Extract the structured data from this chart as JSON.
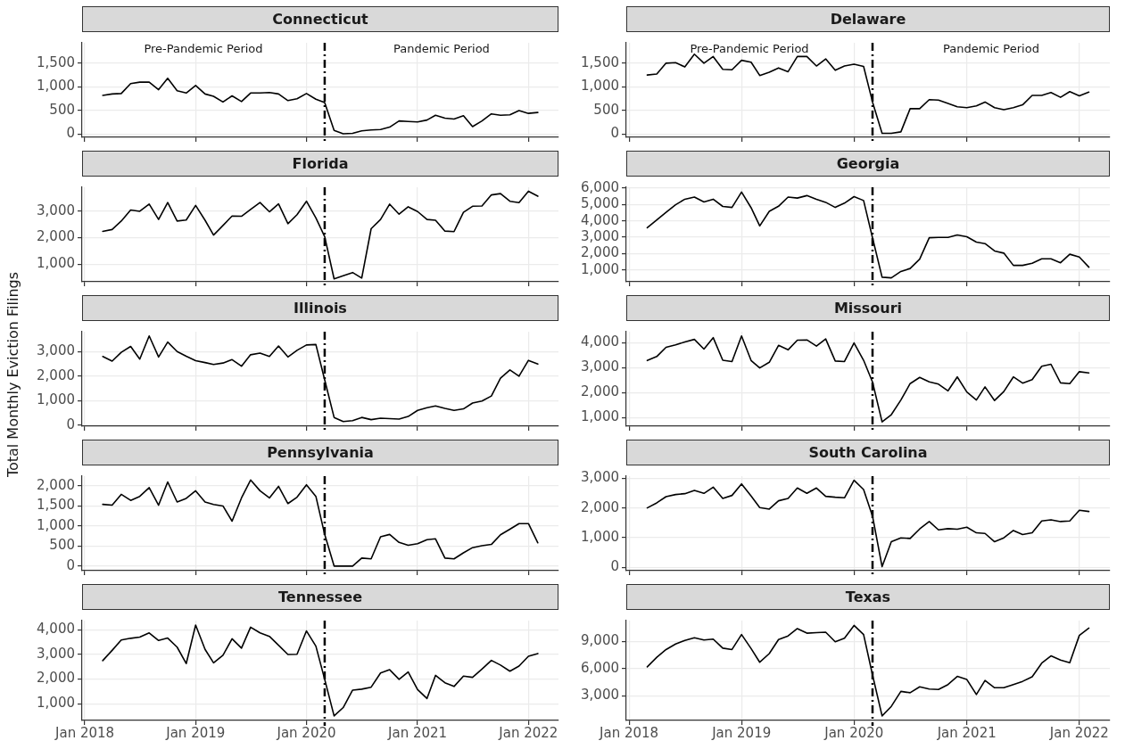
{
  "chart_data": [
    {
      "type": "line",
      "title": "Connecticut",
      "x": [
        "2018-03",
        "2018-04",
        "2018-05",
        "2018-06",
        "2018-07",
        "2018-08",
        "2018-09",
        "2018-10",
        "2018-11",
        "2018-12",
        "2019-01",
        "2019-02",
        "2019-03",
        "2019-04",
        "2019-05",
        "2019-06",
        "2019-07",
        "2019-08",
        "2019-09",
        "2019-10",
        "2019-11",
        "2019-12",
        "2020-01",
        "2020-02",
        "2020-03",
        "2020-04",
        "2020-05",
        "2020-06",
        "2020-07",
        "2020-08",
        "2020-09",
        "2020-10",
        "2020-11",
        "2020-12",
        "2021-01",
        "2021-02",
        "2021-03",
        "2021-04",
        "2021-05",
        "2021-06",
        "2021-07",
        "2021-08",
        "2021-09",
        "2021-10",
        "2021-11",
        "2021-12",
        "2022-01",
        "2022-02"
      ],
      "series": [
        {
          "color": "#000000",
          "values": [
            820,
            850,
            860,
            1070,
            1100,
            1100,
            940,
            1180,
            920,
            870,
            1030,
            850,
            800,
            680,
            810,
            690,
            870,
            870,
            880,
            850,
            710,
            750,
            860,
            740,
            670,
            80,
            10,
            20,
            70,
            90,
            100,
            150,
            280,
            270,
            260,
            300,
            400,
            340,
            320,
            390,
            160,
            280,
            430,
            400,
            410,
            500,
            440,
            460
          ]
        }
      ],
      "xlim": [
        "2017-12-23",
        "2022-04-10"
      ],
      "xticks": [
        {
          "value": "2018-01",
          "label": null
        },
        {
          "value": "2019-01",
          "label": null
        },
        {
          "value": "2020-01",
          "label": null
        },
        {
          "value": "2021-01",
          "label": null
        },
        {
          "value": "2022-01",
          "label": null
        }
      ],
      "ylim": [
        -65,
        1930
      ],
      "yticks": [
        {
          "value": 0,
          "label": "0"
        },
        {
          "value": 500,
          "label": "500"
        },
        {
          "value": 1000,
          "label": "1,000"
        },
        {
          "value": 1500,
          "label": "1,500"
        }
      ],
      "grid": true,
      "tick_labels": "y",
      "ref_lines": [
        {
          "axis": "x",
          "value": "2020-03",
          "line_style": "dashed",
          "color": "#000000"
        }
      ],
      "annotations": [
        "Pre-Pandemic Period",
        "Pandemic Period"
      ]
    },
    {
      "type": "line",
      "title": "Delaware",
      "x": [
        "2018-03",
        "2018-04",
        "2018-05",
        "2018-06",
        "2018-07",
        "2018-08",
        "2018-09",
        "2018-10",
        "2018-11",
        "2018-12",
        "2019-01",
        "2019-02",
        "2019-03",
        "2019-04",
        "2019-05",
        "2019-06",
        "2019-07",
        "2019-08",
        "2019-09",
        "2019-10",
        "2019-11",
        "2019-12",
        "2020-01",
        "2020-02",
        "2020-03",
        "2020-04",
        "2020-05",
        "2020-06",
        "2020-07",
        "2020-08",
        "2020-09",
        "2020-10",
        "2020-11",
        "2020-12",
        "2021-01",
        "2021-02",
        "2021-03",
        "2021-04",
        "2021-05",
        "2021-06",
        "2021-07",
        "2021-08",
        "2021-09",
        "2021-10",
        "2021-11",
        "2021-12",
        "2022-01",
        "2022-02"
      ],
      "series": [
        {
          "color": "#000000",
          "values": [
            1250,
            1270,
            1500,
            1510,
            1420,
            1690,
            1500,
            1640,
            1370,
            1360,
            1560,
            1520,
            1240,
            1310,
            1400,
            1320,
            1640,
            1640,
            1440,
            1590,
            1350,
            1440,
            1480,
            1430,
            680,
            20,
            20,
            50,
            540,
            540,
            730,
            720,
            650,
            580,
            560,
            600,
            680,
            560,
            520,
            560,
            620,
            820,
            820,
            880,
            780,
            900,
            810,
            890
          ]
        }
      ],
      "xlim": [
        "2017-12-23",
        "2022-04-10"
      ],
      "xticks": [
        {
          "value": "2018-01",
          "label": null
        },
        {
          "value": "2019-01",
          "label": null
        },
        {
          "value": "2020-01",
          "label": null
        },
        {
          "value": "2021-01",
          "label": null
        },
        {
          "value": "2022-01",
          "label": null
        }
      ],
      "ylim": [
        -65,
        1930
      ],
      "yticks": [
        {
          "value": 0,
          "label": "0"
        },
        {
          "value": 500,
          "label": "500"
        },
        {
          "value": 1000,
          "label": "1,000"
        },
        {
          "value": 1500,
          "label": "1,500"
        }
      ],
      "grid": true,
      "tick_labels": "y",
      "ref_lines": [
        {
          "axis": "x",
          "value": "2020-03",
          "line_style": "dashed",
          "color": "#000000"
        }
      ],
      "annotations": [
        "Pre-Pandemic Period",
        "Pandemic Period"
      ]
    },
    {
      "type": "line",
      "title": "Florida",
      "x": [
        "2018-03",
        "2018-04",
        "2018-05",
        "2018-06",
        "2018-07",
        "2018-08",
        "2018-09",
        "2018-10",
        "2018-11",
        "2018-12",
        "2019-01",
        "2019-02",
        "2019-03",
        "2019-04",
        "2019-05",
        "2019-06",
        "2019-07",
        "2019-08",
        "2019-09",
        "2019-10",
        "2019-11",
        "2019-12",
        "2020-01",
        "2020-02",
        "2020-03",
        "2020-04",
        "2020-05",
        "2020-06",
        "2020-07",
        "2020-08",
        "2020-09",
        "2020-10",
        "2020-11",
        "2020-12",
        "2021-01",
        "2021-02",
        "2021-03",
        "2021-04",
        "2021-05",
        "2021-06",
        "2021-07",
        "2021-08",
        "2021-09",
        "2021-10",
        "2021-11",
        "2021-12",
        "2022-01",
        "2022-02"
      ],
      "series": [
        {
          "color": "#000000",
          "values": [
            2240,
            2310,
            2630,
            3050,
            3000,
            3270,
            2690,
            3330,
            2630,
            2670,
            3220,
            2660,
            2100,
            2460,
            2820,
            2810,
            3070,
            3330,
            2980,
            3280,
            2530,
            2870,
            3380,
            2750,
            2040,
            440,
            560,
            680,
            470,
            2340,
            2690,
            3270,
            2890,
            3170,
            2990,
            2690,
            2660,
            2250,
            2230,
            2960,
            3190,
            3200,
            3620,
            3670,
            3380,
            3330,
            3760,
            3570
          ]
        }
      ],
      "xlim": [
        "2017-12-23",
        "2022-04-10"
      ],
      "xticks": [
        {
          "value": "2018-01",
          "label": null
        },
        {
          "value": "2019-01",
          "label": null
        },
        {
          "value": "2020-01",
          "label": null
        },
        {
          "value": "2021-01",
          "label": null
        },
        {
          "value": "2022-01",
          "label": null
        }
      ],
      "ylim": [
        330,
        3910
      ],
      "yticks": [
        {
          "value": 1000,
          "label": "1,000"
        },
        {
          "value": 2000,
          "label": "2,000"
        },
        {
          "value": 3000,
          "label": "3,000"
        }
      ],
      "grid": true,
      "tick_labels": "y",
      "ref_lines": [
        {
          "axis": "x",
          "value": "2020-03",
          "line_style": "dashed",
          "color": "#000000"
        }
      ]
    },
    {
      "type": "line",
      "title": "Georgia",
      "x": [
        "2018-03",
        "2018-04",
        "2018-05",
        "2018-06",
        "2018-07",
        "2018-08",
        "2018-09",
        "2018-10",
        "2018-11",
        "2018-12",
        "2019-01",
        "2019-02",
        "2019-03",
        "2019-04",
        "2019-05",
        "2019-06",
        "2019-07",
        "2019-08",
        "2019-09",
        "2019-10",
        "2019-11",
        "2019-12",
        "2020-01",
        "2020-02",
        "2020-03",
        "2020-04",
        "2020-05",
        "2020-06",
        "2020-07",
        "2020-08",
        "2020-09",
        "2020-10",
        "2020-11",
        "2020-12",
        "2021-01",
        "2021-02",
        "2021-03",
        "2021-04",
        "2021-05",
        "2021-06",
        "2021-07",
        "2021-08",
        "2021-09",
        "2021-10",
        "2021-11",
        "2021-12",
        "2022-01",
        "2022-02"
      ],
      "series": [
        {
          "color": "#000000",
          "values": [
            3580,
            4060,
            4520,
            4980,
            5320,
            5450,
            5150,
            5320,
            4880,
            4820,
            5760,
            4800,
            3690,
            4580,
            4890,
            5450,
            5390,
            5540,
            5320,
            5130,
            4820,
            5080,
            5480,
            5240,
            2960,
            560,
            520,
            910,
            1090,
            1660,
            2970,
            2990,
            2990,
            3140,
            3030,
            2700,
            2610,
            2160,
            2030,
            1280,
            1280,
            1410,
            1680,
            1680,
            1440,
            1960,
            1790,
            1170
          ]
        }
      ],
      "xlim": [
        "2017-12-23",
        "2022-04-10"
      ],
      "xticks": [
        {
          "value": "2018-01",
          "label": null
        },
        {
          "value": "2019-01",
          "label": null
        },
        {
          "value": "2020-01",
          "label": null
        },
        {
          "value": "2021-01",
          "label": null
        },
        {
          "value": "2022-01",
          "label": null
        }
      ],
      "ylim": [
        280,
        6050
      ],
      "yticks": [
        {
          "value": 1000,
          "label": "1,000"
        },
        {
          "value": 2000,
          "label": "2,000"
        },
        {
          "value": 3000,
          "label": "3,000"
        },
        {
          "value": 4000,
          "label": "4,000"
        },
        {
          "value": 5000,
          "label": "5,000"
        },
        {
          "value": 6000,
          "label": "6,000"
        }
      ],
      "grid": true,
      "tick_labels": "y",
      "ref_lines": [
        {
          "axis": "x",
          "value": "2020-03",
          "line_style": "dashed",
          "color": "#000000"
        }
      ]
    },
    {
      "type": "line",
      "title": "Illinois",
      "ylabel": "Total Monthly Eviction Filings",
      "x": [
        "2018-03",
        "2018-04",
        "2018-05",
        "2018-06",
        "2018-07",
        "2018-08",
        "2018-09",
        "2018-10",
        "2018-11",
        "2018-12",
        "2019-01",
        "2019-02",
        "2019-03",
        "2019-04",
        "2019-05",
        "2019-06",
        "2019-07",
        "2019-08",
        "2019-09",
        "2019-10",
        "2019-11",
        "2019-12",
        "2020-01",
        "2020-02",
        "2020-03",
        "2020-04",
        "2020-05",
        "2020-06",
        "2020-07",
        "2020-08",
        "2020-09",
        "2020-10",
        "2020-11",
        "2020-12",
        "2021-01",
        "2021-02",
        "2021-03",
        "2021-04",
        "2021-05",
        "2021-06",
        "2021-07",
        "2021-08",
        "2021-09",
        "2021-10",
        "2021-11",
        "2021-12",
        "2022-01",
        "2022-02"
      ],
      "series": [
        {
          "color": "#000000",
          "values": [
            2810,
            2620,
            2980,
            3220,
            2700,
            3650,
            2790,
            3400,
            3010,
            2820,
            2640,
            2560,
            2480,
            2540,
            2680,
            2410,
            2880,
            2950,
            2810,
            3240,
            2790,
            3060,
            3280,
            3300,
            1850,
            310,
            140,
            180,
            310,
            220,
            280,
            260,
            240,
            350,
            600,
            710,
            780,
            680,
            600,
            660,
            900,
            980,
            1190,
            1920,
            2260,
            2000,
            2650,
            2500
          ]
        }
      ],
      "xlim": [
        "2017-12-23",
        "2022-04-10"
      ],
      "xticks": [
        {
          "value": "2018-01",
          "label": null
        },
        {
          "value": "2019-01",
          "label": null
        },
        {
          "value": "2020-01",
          "label": null
        },
        {
          "value": "2021-01",
          "label": null
        },
        {
          "value": "2022-01",
          "label": null
        }
      ],
      "ylim": [
        -50,
        3825
      ],
      "yticks": [
        {
          "value": 0,
          "label": "0"
        },
        {
          "value": 1000,
          "label": "1,000"
        },
        {
          "value": 2000,
          "label": "2,000"
        },
        {
          "value": 3000,
          "label": "3,000"
        }
      ],
      "grid": true,
      "tick_labels": "y",
      "ref_lines": [
        {
          "axis": "x",
          "value": "2020-03",
          "line_style": "dashed",
          "color": "#000000"
        }
      ]
    },
    {
      "type": "line",
      "title": "Missouri",
      "x": [
        "2018-03",
        "2018-04",
        "2018-05",
        "2018-06",
        "2018-07",
        "2018-08",
        "2018-09",
        "2018-10",
        "2018-11",
        "2018-12",
        "2019-01",
        "2019-02",
        "2019-03",
        "2019-04",
        "2019-05",
        "2019-06",
        "2019-07",
        "2019-08",
        "2019-09",
        "2019-10",
        "2019-11",
        "2019-12",
        "2020-01",
        "2020-02",
        "2020-03",
        "2020-04",
        "2020-05",
        "2020-06",
        "2020-07",
        "2020-08",
        "2020-09",
        "2020-10",
        "2020-11",
        "2020-12",
        "2021-01",
        "2021-02",
        "2021-03",
        "2021-04",
        "2021-05",
        "2021-06",
        "2021-07",
        "2021-08",
        "2021-09",
        "2021-10",
        "2021-11",
        "2021-12",
        "2022-01",
        "2022-02"
      ],
      "series": [
        {
          "color": "#000000",
          "values": [
            3290,
            3450,
            3820,
            3920,
            4040,
            4140,
            3750,
            4210,
            3300,
            3250,
            4280,
            3290,
            2990,
            3220,
            3900,
            3720,
            4110,
            4120,
            3870,
            4160,
            3270,
            3250,
            4000,
            3300,
            2420,
            820,
            1110,
            1700,
            2360,
            2610,
            2430,
            2340,
            2070,
            2630,
            2020,
            1700,
            2230,
            1680,
            2040,
            2630,
            2380,
            2520,
            3060,
            3140,
            2390,
            2360,
            2840,
            2790
          ]
        }
      ],
      "xlim": [
        "2017-12-23",
        "2022-04-10"
      ],
      "xticks": [
        {
          "value": "2018-01",
          "label": null
        },
        {
          "value": "2019-01",
          "label": null
        },
        {
          "value": "2020-01",
          "label": null
        },
        {
          "value": "2021-01",
          "label": null
        },
        {
          "value": "2022-01",
          "label": null
        }
      ],
      "ylim": [
        645,
        4450
      ],
      "yticks": [
        {
          "value": 1000,
          "label": "1,000"
        },
        {
          "value": 2000,
          "label": "2,000"
        },
        {
          "value": 3000,
          "label": "3,000"
        },
        {
          "value": 4000,
          "label": "4,000"
        }
      ],
      "grid": true,
      "tick_labels": "y",
      "ref_lines": [
        {
          "axis": "x",
          "value": "2020-03",
          "line_style": "dashed",
          "color": "#000000"
        }
      ]
    },
    {
      "type": "line",
      "title": "Pennsylvania",
      "x": [
        "2018-03",
        "2018-04",
        "2018-05",
        "2018-06",
        "2018-07",
        "2018-08",
        "2018-09",
        "2018-10",
        "2018-11",
        "2018-12",
        "2019-01",
        "2019-02",
        "2019-03",
        "2019-04",
        "2019-05",
        "2019-06",
        "2019-07",
        "2019-08",
        "2019-09",
        "2019-10",
        "2019-11",
        "2019-12",
        "2020-01",
        "2020-02",
        "2020-03",
        "2020-04",
        "2020-05",
        "2020-06",
        "2020-07",
        "2020-08",
        "2020-09",
        "2020-10",
        "2020-11",
        "2020-12",
        "2021-01",
        "2021-02",
        "2021-03",
        "2021-04",
        "2021-05",
        "2021-06",
        "2021-07",
        "2021-08",
        "2021-09",
        "2021-10",
        "2021-11",
        "2021-12",
        "2022-01",
        "2022-02"
      ],
      "series": [
        {
          "color": "#000000",
          "values": [
            1540,
            1520,
            1790,
            1640,
            1740,
            1960,
            1520,
            2100,
            1600,
            1690,
            1880,
            1600,
            1540,
            1500,
            1120,
            1700,
            2150,
            1880,
            1700,
            1990,
            1560,
            1720,
            2030,
            1740,
            790,
            0,
            0,
            0,
            200,
            180,
            730,
            790,
            590,
            520,
            560,
            660,
            680,
            200,
            180,
            330,
            460,
            510,
            540,
            780,
            920,
            1060,
            1060,
            580
          ]
        }
      ],
      "xlim": [
        "2017-12-23",
        "2022-04-10"
      ],
      "xticks": [
        {
          "value": "2018-01",
          "label": null
        },
        {
          "value": "2019-01",
          "label": null
        },
        {
          "value": "2020-01",
          "label": null
        },
        {
          "value": "2021-01",
          "label": null
        },
        {
          "value": "2022-01",
          "label": null
        }
      ],
      "ylim": [
        -115,
        2245
      ],
      "yticks": [
        {
          "value": 0,
          "label": "0"
        },
        {
          "value": 500,
          "label": "500"
        },
        {
          "value": 1000,
          "label": "1,000"
        },
        {
          "value": 1500,
          "label": "1,500"
        },
        {
          "value": 2000,
          "label": "2,000"
        }
      ],
      "grid": true,
      "tick_labels": "y",
      "ref_lines": [
        {
          "axis": "x",
          "value": "2020-03",
          "line_style": "dashed",
          "color": "#000000"
        }
      ]
    },
    {
      "type": "line",
      "title": "South Carolina",
      "x": [
        "2018-03",
        "2018-04",
        "2018-05",
        "2018-06",
        "2018-07",
        "2018-08",
        "2018-09",
        "2018-10",
        "2018-11",
        "2018-12",
        "2019-01",
        "2019-02",
        "2019-03",
        "2019-04",
        "2019-05",
        "2019-06",
        "2019-07",
        "2019-08",
        "2019-09",
        "2019-10",
        "2019-11",
        "2019-12",
        "2020-01",
        "2020-02",
        "2020-03",
        "2020-04",
        "2020-05",
        "2020-06",
        "2020-07",
        "2020-08",
        "2020-09",
        "2020-10",
        "2020-11",
        "2020-12",
        "2021-01",
        "2021-02",
        "2021-03",
        "2021-04",
        "2021-05",
        "2021-06",
        "2021-07",
        "2021-08",
        "2021-09",
        "2021-10",
        "2021-11",
        "2021-12",
        "2022-01",
        "2022-02"
      ],
      "series": [
        {
          "color": "#000000",
          "values": [
            2000,
            2170,
            2380,
            2450,
            2480,
            2590,
            2490,
            2700,
            2320,
            2420,
            2810,
            2400,
            2010,
            1960,
            2240,
            2320,
            2670,
            2490,
            2670,
            2390,
            2360,
            2340,
            2930,
            2620,
            1720,
            20,
            860,
            990,
            970,
            1290,
            1540,
            1260,
            1300,
            1280,
            1350,
            1160,
            1140,
            860,
            990,
            1240,
            1100,
            1160,
            1560,
            1600,
            1540,
            1560,
            1920,
            1880
          ]
        }
      ],
      "xlim": [
        "2017-12-23",
        "2022-04-10"
      ],
      "xticks": [
        {
          "value": "2018-01",
          "label": null
        },
        {
          "value": "2019-01",
          "label": null
        },
        {
          "value": "2020-01",
          "label": null
        },
        {
          "value": "2021-01",
          "label": null
        },
        {
          "value": "2022-01",
          "label": null
        }
      ],
      "ylim": [
        -115,
        3070
      ],
      "yticks": [
        {
          "value": 0,
          "label": "0"
        },
        {
          "value": 1000,
          "label": "1,000"
        },
        {
          "value": 2000,
          "label": "2,000"
        },
        {
          "value": 3000,
          "label": "3,000"
        }
      ],
      "grid": true,
      "tick_labels": "y",
      "ref_lines": [
        {
          "axis": "x",
          "value": "2020-03",
          "line_style": "dashed",
          "color": "#000000"
        }
      ]
    },
    {
      "type": "line",
      "title": "Tennessee",
      "x": [
        "2018-03",
        "2018-04",
        "2018-05",
        "2018-06",
        "2018-07",
        "2018-08",
        "2018-09",
        "2018-10",
        "2018-11",
        "2018-12",
        "2019-01",
        "2019-02",
        "2019-03",
        "2019-04",
        "2019-05",
        "2019-06",
        "2019-07",
        "2019-08",
        "2019-09",
        "2019-10",
        "2019-11",
        "2019-12",
        "2020-01",
        "2020-02",
        "2020-03",
        "2020-04",
        "2020-05",
        "2020-06",
        "2020-07",
        "2020-08",
        "2020-09",
        "2020-10",
        "2020-11",
        "2020-12",
        "2021-01",
        "2021-02",
        "2021-03",
        "2021-04",
        "2021-05",
        "2021-06",
        "2021-07",
        "2021-08",
        "2021-09",
        "2021-10",
        "2021-11",
        "2021-12",
        "2022-01",
        "2022-02"
      ],
      "series": [
        {
          "color": "#000000",
          "values": [
            2750,
            3170,
            3590,
            3660,
            3710,
            3880,
            3570,
            3670,
            3300,
            2630,
            4200,
            3210,
            2660,
            2970,
            3640,
            3260,
            4110,
            3880,
            3740,
            3380,
            3000,
            3010,
            3960,
            3340,
            1990,
            500,
            840,
            1550,
            1590,
            1670,
            2250,
            2380,
            1990,
            2290,
            1570,
            1210,
            2150,
            1850,
            1700,
            2120,
            2070,
            2410,
            2760,
            2570,
            2320,
            2530,
            2930,
            3040
          ]
        }
      ],
      "xlim": [
        "2017-12-23",
        "2022-04-10"
      ],
      "xticks": [
        {
          "value": "2018-01",
          "label": "Jan 2018"
        },
        {
          "value": "2019-01",
          "label": "Jan 2019"
        },
        {
          "value": "2020-01",
          "label": "Jan 2020"
        },
        {
          "value": "2021-01",
          "label": "Jan 2021"
        },
        {
          "value": "2022-01",
          "label": "Jan 2022"
        }
      ],
      "ylim": [
        315,
        4380
      ],
      "yticks": [
        {
          "value": 1000,
          "label": "1,000"
        },
        {
          "value": 2000,
          "label": "2,000"
        },
        {
          "value": 3000,
          "label": "3,000"
        },
        {
          "value": 4000,
          "label": "4,000"
        }
      ],
      "grid": true,
      "ref_lines": [
        {
          "axis": "x",
          "value": "2020-03",
          "line_style": "dashed",
          "color": "#000000"
        }
      ]
    },
    {
      "type": "line",
      "title": "Texas",
      "x": [
        "2018-03",
        "2018-04",
        "2018-05",
        "2018-06",
        "2018-07",
        "2018-08",
        "2018-09",
        "2018-10",
        "2018-11",
        "2018-12",
        "2019-01",
        "2019-02",
        "2019-03",
        "2019-04",
        "2019-05",
        "2019-06",
        "2019-07",
        "2019-08",
        "2019-09",
        "2019-10",
        "2019-11",
        "2019-12",
        "2020-01",
        "2020-02",
        "2020-03",
        "2020-04",
        "2020-05",
        "2020-06",
        "2020-07",
        "2020-08",
        "2020-09",
        "2020-10",
        "2020-11",
        "2020-12",
        "2021-01",
        "2021-02",
        "2021-03",
        "2021-04",
        "2021-05",
        "2021-06",
        "2021-07",
        "2021-08",
        "2021-09",
        "2021-10",
        "2021-11",
        "2021-12",
        "2022-01",
        "2022-02"
      ],
      "series": [
        {
          "color": "#000000",
          "values": [
            6200,
            7250,
            8100,
            8700,
            9100,
            9400,
            9150,
            9250,
            8250,
            8100,
            9750,
            8200,
            6700,
            7650,
            9200,
            9600,
            10400,
            9900,
            9950,
            10000,
            8950,
            9350,
            10750,
            9750,
            5300,
            800,
            1850,
            3500,
            3350,
            4000,
            3750,
            3700,
            4250,
            5150,
            4800,
            3150,
            4700,
            3900,
            3900,
            4250,
            4600,
            5100,
            6600,
            7400,
            6950,
            6650,
            9650,
            10450
          ]
        }
      ],
      "xlim": [
        "2017-12-23",
        "2022-04-10"
      ],
      "xticks": [
        {
          "value": "2018-01",
          "label": "Jan 2018"
        },
        {
          "value": "2019-01",
          "label": "Jan 2019"
        },
        {
          "value": "2020-01",
          "label": "Jan 2020"
        },
        {
          "value": "2021-01",
          "label": "Jan 2021"
        },
        {
          "value": "2022-01",
          "label": "Jan 2022"
        }
      ],
      "ylim": [
        300,
        11280
      ],
      "yticks": [
        {
          "value": 3000,
          "label": "3,000"
        },
        {
          "value": 6000,
          "label": "6,000"
        },
        {
          "value": 9000,
          "label": "9,000"
        }
      ],
      "grid": true,
      "ref_lines": [
        {
          "axis": "x",
          "value": "2020-03",
          "line_style": "dashed",
          "color": "#000000"
        }
      ]
    }
  ]
}
